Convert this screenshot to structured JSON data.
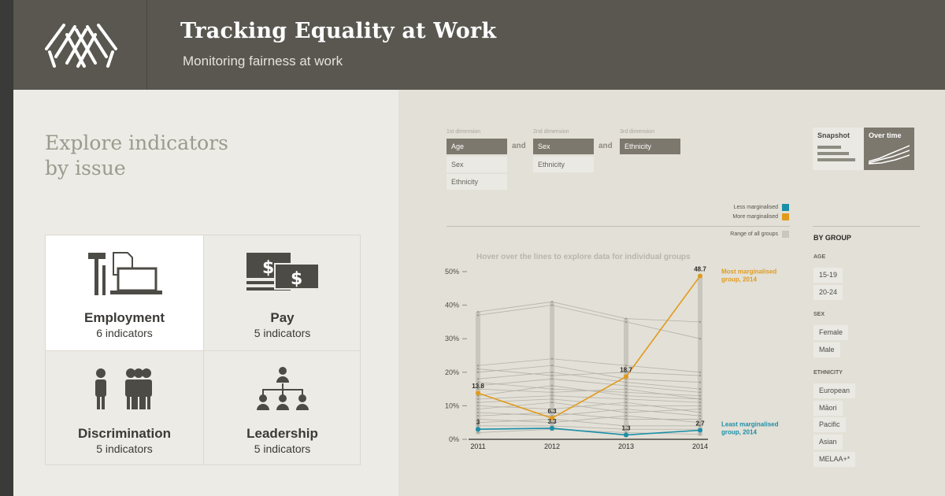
{
  "header": {
    "title": "Tracking Equality at Work",
    "subtitle": "Monitoring fairness at work"
  },
  "left": {
    "heading_line1": "Explore indicators",
    "heading_line2": "by issue",
    "issues": [
      {
        "name": "Employment",
        "count": "6 indicators",
        "icon": "tools-computer-icon"
      },
      {
        "name": "Pay",
        "count": "5 indicators",
        "icon": "dollar-notes-icon"
      },
      {
        "name": "Discrimination",
        "count": "5 indicators",
        "icon": "people-group-icon"
      },
      {
        "name": "Leadership",
        "count": "5 indicators",
        "icon": "org-chart-icon"
      }
    ]
  },
  "controls": {
    "dim1_label": "1st dimension",
    "dim2_label": "2nd dimension",
    "dim3_label": "3rd dimension",
    "and": "and",
    "dim1_options": [
      "Age",
      "Sex",
      "Ethnicity"
    ],
    "dim2_options": [
      "Sex",
      "Ethnicity"
    ],
    "dim3_options": [
      "Ethnicity"
    ],
    "snapshot": "Snapshot",
    "over_time": "Over time"
  },
  "legend": {
    "less": "Less marginalised",
    "more": "More marginalised",
    "range": "Range of all groups",
    "less_color": "#1a8fa8",
    "more_color": "#e09b1c",
    "range_color": "#c9c6bd"
  },
  "groups": {
    "title": "BY GROUP",
    "age_label": "AGE",
    "age": [
      "15-19",
      "20-24"
    ],
    "sex_label": "SEX",
    "sex": [
      "Female",
      "Male"
    ],
    "ethnicity_label": "ETHNICITY",
    "ethnicity": [
      "European",
      "Māori",
      "Pacific",
      "Asian",
      "MELAA+*"
    ]
  },
  "chart_data": {
    "type": "line",
    "title": "Hover over the lines to explore data for individual groups",
    "x": [
      "2011",
      "2012",
      "2013",
      "2014"
    ],
    "y_ticks": [
      "0%",
      "10%",
      "20%",
      "30%",
      "40%",
      "50%"
    ],
    "ylim": [
      0,
      50
    ],
    "range": [
      [
        1.5,
        38
      ],
      [
        2.5,
        41
      ],
      [
        0.8,
        36
      ],
      [
        1,
        49
      ]
    ],
    "series": [
      {
        "name": "Most marginalised group, 2014",
        "color": "#e09b1c",
        "values": [
          13.8,
          6.3,
          18.7,
          48.7
        ],
        "labels": [
          "13.8",
          "6.3",
          "18.7",
          "48.7"
        ]
      },
      {
        "name": "Least marginalised group, 2014",
        "color": "#1a8fa8",
        "values": [
          3,
          3.3,
          1.3,
          2.7
        ],
        "labels": [
          "3",
          "3.3",
          "1.3",
          "2.7"
        ]
      }
    ],
    "background_lines": [
      [
        37,
        40,
        35,
        30
      ],
      [
        38,
        41,
        36,
        35
      ],
      [
        22,
        24,
        22,
        20
      ],
      [
        20,
        22,
        18,
        17
      ],
      [
        18,
        20,
        17,
        15
      ],
      [
        16,
        18,
        16,
        14
      ],
      [
        15,
        14,
        15,
        12
      ],
      [
        12,
        13,
        12,
        11
      ],
      [
        11,
        12,
        10,
        10
      ],
      [
        10,
        9,
        11,
        8
      ],
      [
        9,
        11,
        8,
        9
      ],
      [
        8,
        7,
        9,
        7
      ],
      [
        7,
        8,
        6,
        6
      ],
      [
        6,
        5,
        7,
        5
      ],
      [
        5,
        6,
        4,
        4
      ],
      [
        4,
        4,
        3,
        3
      ],
      [
        2,
        3,
        2,
        1.5
      ],
      [
        21,
        19,
        20,
        19
      ],
      [
        17,
        15,
        14,
        13
      ],
      [
        13,
        16,
        13,
        12
      ]
    ]
  }
}
